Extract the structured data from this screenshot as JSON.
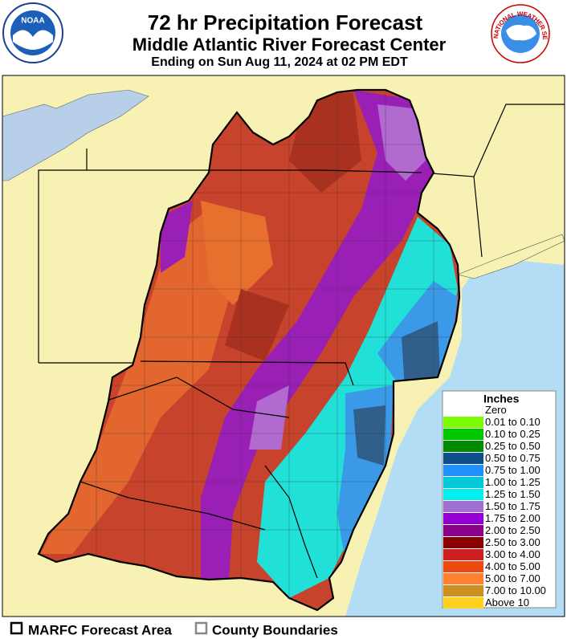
{
  "header": {
    "title": "72 hr Precipitation Forecast",
    "subtitle": "Middle Atlantic River Forecast Center",
    "valid": "Ending on Sun Aug 11, 2024 at 02 PM EDT",
    "logos": [
      "NOAA",
      "NATIONAL WEATHER SERVICE"
    ]
  },
  "legend": {
    "title": "Inches",
    "items": [
      {
        "label": "Zero",
        "color": "#ffffff"
      },
      {
        "label": "0.01 to 0.10",
        "color": "#7cfc00"
      },
      {
        "label": "0.10 to 0.25",
        "color": "#00c800"
      },
      {
        "label": "0.25 to 0.50",
        "color": "#008b00"
      },
      {
        "label": "0.50 to 0.75",
        "color": "#104e8b"
      },
      {
        "label": "0.75 to 1.00",
        "color": "#1e90ff"
      },
      {
        "label": "1.00 to 1.25",
        "color": "#00c8d8"
      },
      {
        "label": "1.25 to 1.50",
        "color": "#00eeee"
      },
      {
        "label": "1.50 to 1.75",
        "color": "#a070d0"
      },
      {
        "label": "1.75 to 2.00",
        "color": "#9400d3"
      },
      {
        "label": "2.00 to 2.50",
        "color": "#8b008b"
      },
      {
        "label": "2.50 to 3.00",
        "color": "#8b0000"
      },
      {
        "label": "3.00 to 4.00",
        "color": "#cd2020"
      },
      {
        "label": "4.00 to 5.00",
        "color": "#ee4a10"
      },
      {
        "label": "5.00 to 7.00",
        "color": "#ff8030"
      },
      {
        "label": "7.00 to 10.00",
        "color": "#cd9020"
      },
      {
        "label": "Above 10",
        "color": "#ffd21f"
      }
    ]
  },
  "footer": {
    "items": [
      "MARFC Forecast Area",
      "County Boundaries"
    ]
  }
}
